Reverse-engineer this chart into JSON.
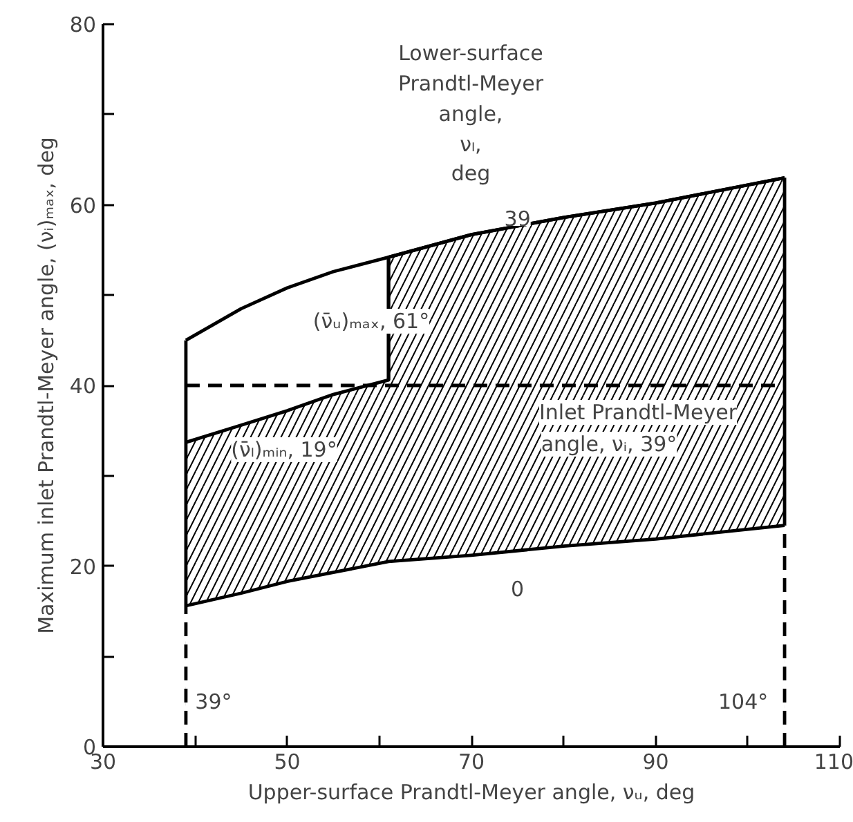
{
  "chart_data": {
    "type": "line",
    "xlabel": "Upper-surface Prandtl-Meyer angle, νᵤ, deg",
    "ylabel": "Maximum inlet Prandtl-Meyer angle, (νᵢ)ₘₐₓ, deg",
    "xlim": [
      30,
      110
    ],
    "ylim": [
      0,
      80
    ],
    "xticks": [
      30,
      {
        "value": 40,
        "label": null
      },
      50,
      {
        "value": 60,
        "label": null
      },
      70,
      {
        "value": 80,
        "label": null
      },
      90,
      {
        "value": 100,
        "label": null
      },
      110
    ],
    "yticks": [
      0,
      {
        "value": 10,
        "label": null
      },
      20,
      {
        "value": 30,
        "label": null
      },
      40,
      {
        "value": 50,
        "label": null
      },
      60,
      {
        "value": 70,
        "label": null
      },
      80
    ],
    "marker": "none",
    "series": [
      {
        "type": "area",
        "color": "#000000",
        "x": [
          39,
          45,
          50,
          55,
          61,
          61,
          70,
          80,
          90,
          104
        ],
        "values": [
          33.7,
          35.6,
          37.2,
          39.0,
          40.6,
          54.2,
          56.7,
          58.6,
          60.2,
          63.0
        ]
      },
      {
        "type": "area",
        "color": "#ffffff",
        "x": [
          39,
          45,
          50,
          55,
          61,
          70,
          80,
          90,
          104
        ],
        "values": [
          15.6,
          17.0,
          18.3,
          19.3,
          20.5,
          21.2,
          22.2,
          23.0,
          24.5
        ]
      },
      {
        "color": "#000000",
        "x": [
          39,
          45,
          50,
          55,
          61,
          70,
          80,
          90,
          104
        ],
        "values": [
          45.0,
          48.5,
          50.8,
          52.6,
          54.2,
          56.7,
          58.6,
          60.2,
          63.0
        ]
      },
      {
        "color": "#000000",
        "x": [
          61,
          61
        ],
        "values": [
          40.6,
          54.2
        ]
      },
      {
        "color": "#000000",
        "x": [
          39,
          39
        ],
        "values": [
          15.6,
          45.0
        ]
      },
      {
        "color": "#000000",
        "x": [
          104,
          104
        ],
        "values": [
          24.5,
          63.0
        ]
      },
      {
        "color": "#000000",
        "line_style": "dashed",
        "x": [
          39,
          104
        ],
        "values": [
          40,
          40
        ]
      },
      {
        "color": "#000000",
        "line_style": "dashed",
        "x": [
          39,
          39
        ],
        "values": [
          0,
          15.6
        ]
      },
      {
        "color": "#000000",
        "line_style": "dashed",
        "x": [
          104,
          104
        ],
        "values": [
          0,
          24.5
        ]
      }
    ],
    "annotations": [
      "Lower-surface",
      "Prandtl-Meyer",
      "angle,",
      "νₗ,",
      "deg",
      {
        "text": "39",
        "x": 75,
        "y": 58.5
      },
      {
        "text": "0",
        "x": 75,
        "y": 17.5
      },
      {
        "text": "39°",
        "x": 42,
        "y": 5
      },
      {
        "text": "104°",
        "x": 99.5,
        "y": 5
      },
      "(ν̄ₗ)ₘᵢₙ, 19°",
      "(ν̄ᵤ)ₘₐₓ, 61°",
      "Inlet Prandtl-Meyer",
      "angle, νᵢ, 39°"
    ]
  }
}
